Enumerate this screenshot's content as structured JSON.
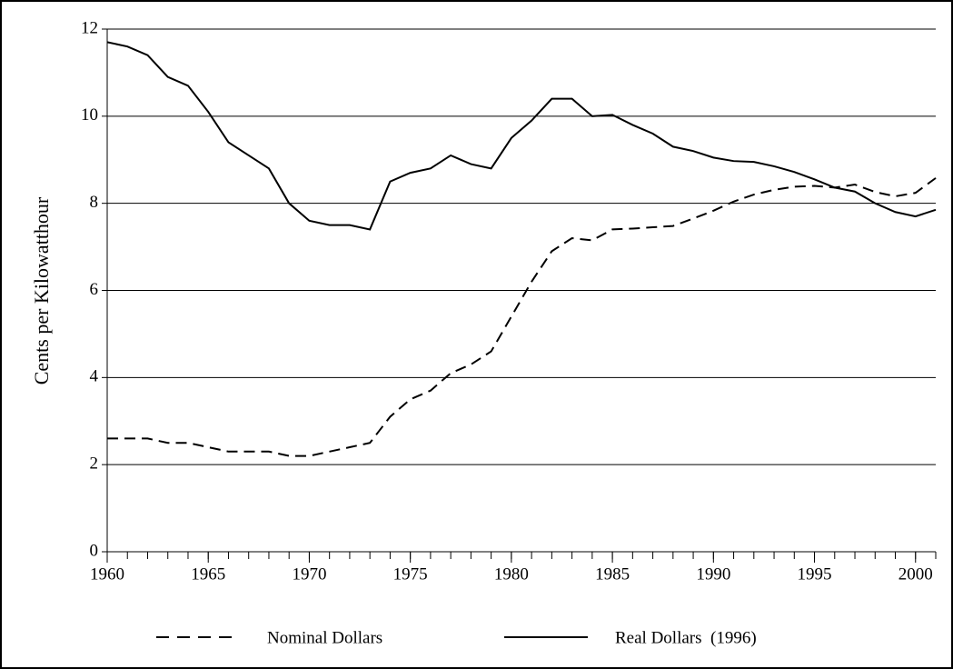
{
  "chart_data": {
    "type": "line",
    "y_label": "Cents per Kilowatthour",
    "x": [
      1960,
      1961,
      1962,
      1963,
      1964,
      1965,
      1966,
      1967,
      1968,
      1969,
      1970,
      1971,
      1972,
      1973,
      1974,
      1975,
      1976,
      1977,
      1978,
      1979,
      1980,
      1981,
      1982,
      1983,
      1984,
      1985,
      1986,
      1987,
      1988,
      1989,
      1990,
      1991,
      1992,
      1993,
      1994,
      1995,
      1996,
      1997,
      1998,
      1999,
      2000,
      2001
    ],
    "series": [
      {
        "name": "Nominal Dollars",
        "color": "#000000",
        "dashed": true,
        "values": [
          2.6,
          2.6,
          2.6,
          2.5,
          2.5,
          2.4,
          2.3,
          2.3,
          2.3,
          2.2,
          2.2,
          2.3,
          2.4,
          2.5,
          3.1,
          3.5,
          3.7,
          4.1,
          4.3,
          4.6,
          5.4,
          6.2,
          6.9,
          7.2,
          7.15,
          7.4,
          7.42,
          7.45,
          7.48,
          7.65,
          7.83,
          8.04,
          8.2,
          8.31,
          8.38,
          8.4,
          8.36,
          8.43,
          8.26,
          8.16,
          8.24,
          8.58
        ]
      },
      {
        "name": "Real Dollars  (1996)",
        "color": "#000000",
        "dashed": false,
        "values": [
          11.7,
          11.6,
          11.4,
          10.9,
          10.7,
          10.1,
          9.4,
          9.1,
          8.8,
          8.0,
          7.6,
          7.5,
          7.5,
          7.4,
          8.5,
          8.7,
          8.8,
          9.1,
          8.9,
          8.8,
          9.5,
          9.9,
          10.4,
          10.4,
          10.0,
          10.03,
          9.8,
          9.6,
          9.3,
          9.2,
          9.05,
          8.97,
          8.95,
          8.85,
          8.72,
          8.55,
          8.36,
          8.27,
          8.0,
          7.8,
          7.7,
          7.85
        ]
      }
    ],
    "xlim": [
      1960,
      2001
    ],
    "xticks": [
      1960,
      1965,
      1970,
      1975,
      1980,
      1985,
      1990,
      1995,
      2000
    ],
    "xminorticks": [
      1960,
      1961,
      1962,
      1963,
      1964,
      1965,
      1966,
      1967,
      1968,
      1969,
      1970,
      1971,
      1972,
      1973,
      1974,
      1975,
      1976,
      1977,
      1978,
      1979,
      1980,
      1981,
      1982,
      1983,
      1984,
      1985,
      1986,
      1987,
      1988,
      1989,
      1990,
      1991,
      1992,
      1993,
      1994,
      1995,
      1996,
      1997,
      1998,
      1999,
      2000,
      2001
    ],
    "ylim": [
      0,
      12
    ],
    "yticks": [
      0,
      2,
      4,
      6,
      8,
      10,
      12
    ],
    "grid": true,
    "legend": "bottom"
  }
}
